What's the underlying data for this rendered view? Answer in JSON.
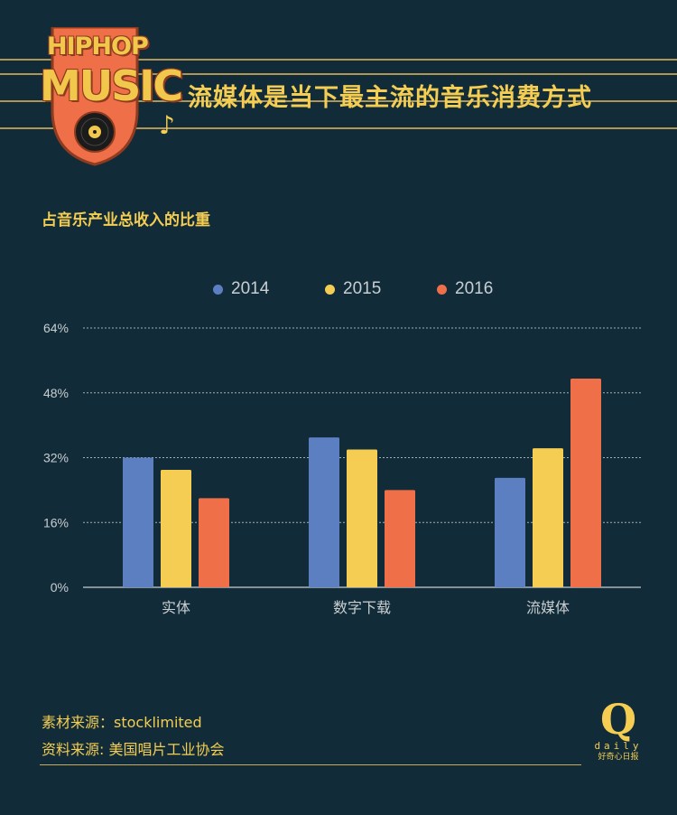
{
  "logo": {
    "top_text": "HIPHOP",
    "main_text": "MUSIC",
    "icons": [
      "vinyl-record-icon",
      "music-note-icon"
    ]
  },
  "headline": "流媒体是当下最主流的音乐消费方式",
  "subtitle": "占音乐产业总收入的比重",
  "chart_data": {
    "type": "bar",
    "title": "",
    "xlabel": "",
    "ylabel": "",
    "categories": [
      "实体",
      "数字下载",
      "流媒体"
    ],
    "series": [
      {
        "name": "2014",
        "values": [
          32,
          37,
          27
        ],
        "color": "#5b7fc1"
      },
      {
        "name": "2015",
        "values": [
          29,
          34,
          34.3
        ],
        "color": "#f4cd52"
      },
      {
        "name": "2016",
        "values": [
          22,
          24,
          51.5
        ],
        "color": "#ef6f48"
      }
    ],
    "ylim": [
      0,
      64
    ],
    "yticks": [
      0,
      16,
      32,
      48,
      64
    ],
    "ytick_labels": [
      "0%",
      "16%",
      "32%",
      "48%",
      "64%"
    ],
    "grid": true,
    "legend_position": "top-center"
  },
  "footer": {
    "source_material": "素材来源：stocklimited",
    "source_data": "资料来源: 美国唱片工业协会"
  },
  "brand": {
    "mark": "Q",
    "name": "daily",
    "slogan": "好奇心日报"
  },
  "colors": {
    "background": "#112c38",
    "accent_yellow": "#f4cd52",
    "accent_orange": "#ef6f48",
    "accent_blue": "#5b7fc1"
  }
}
